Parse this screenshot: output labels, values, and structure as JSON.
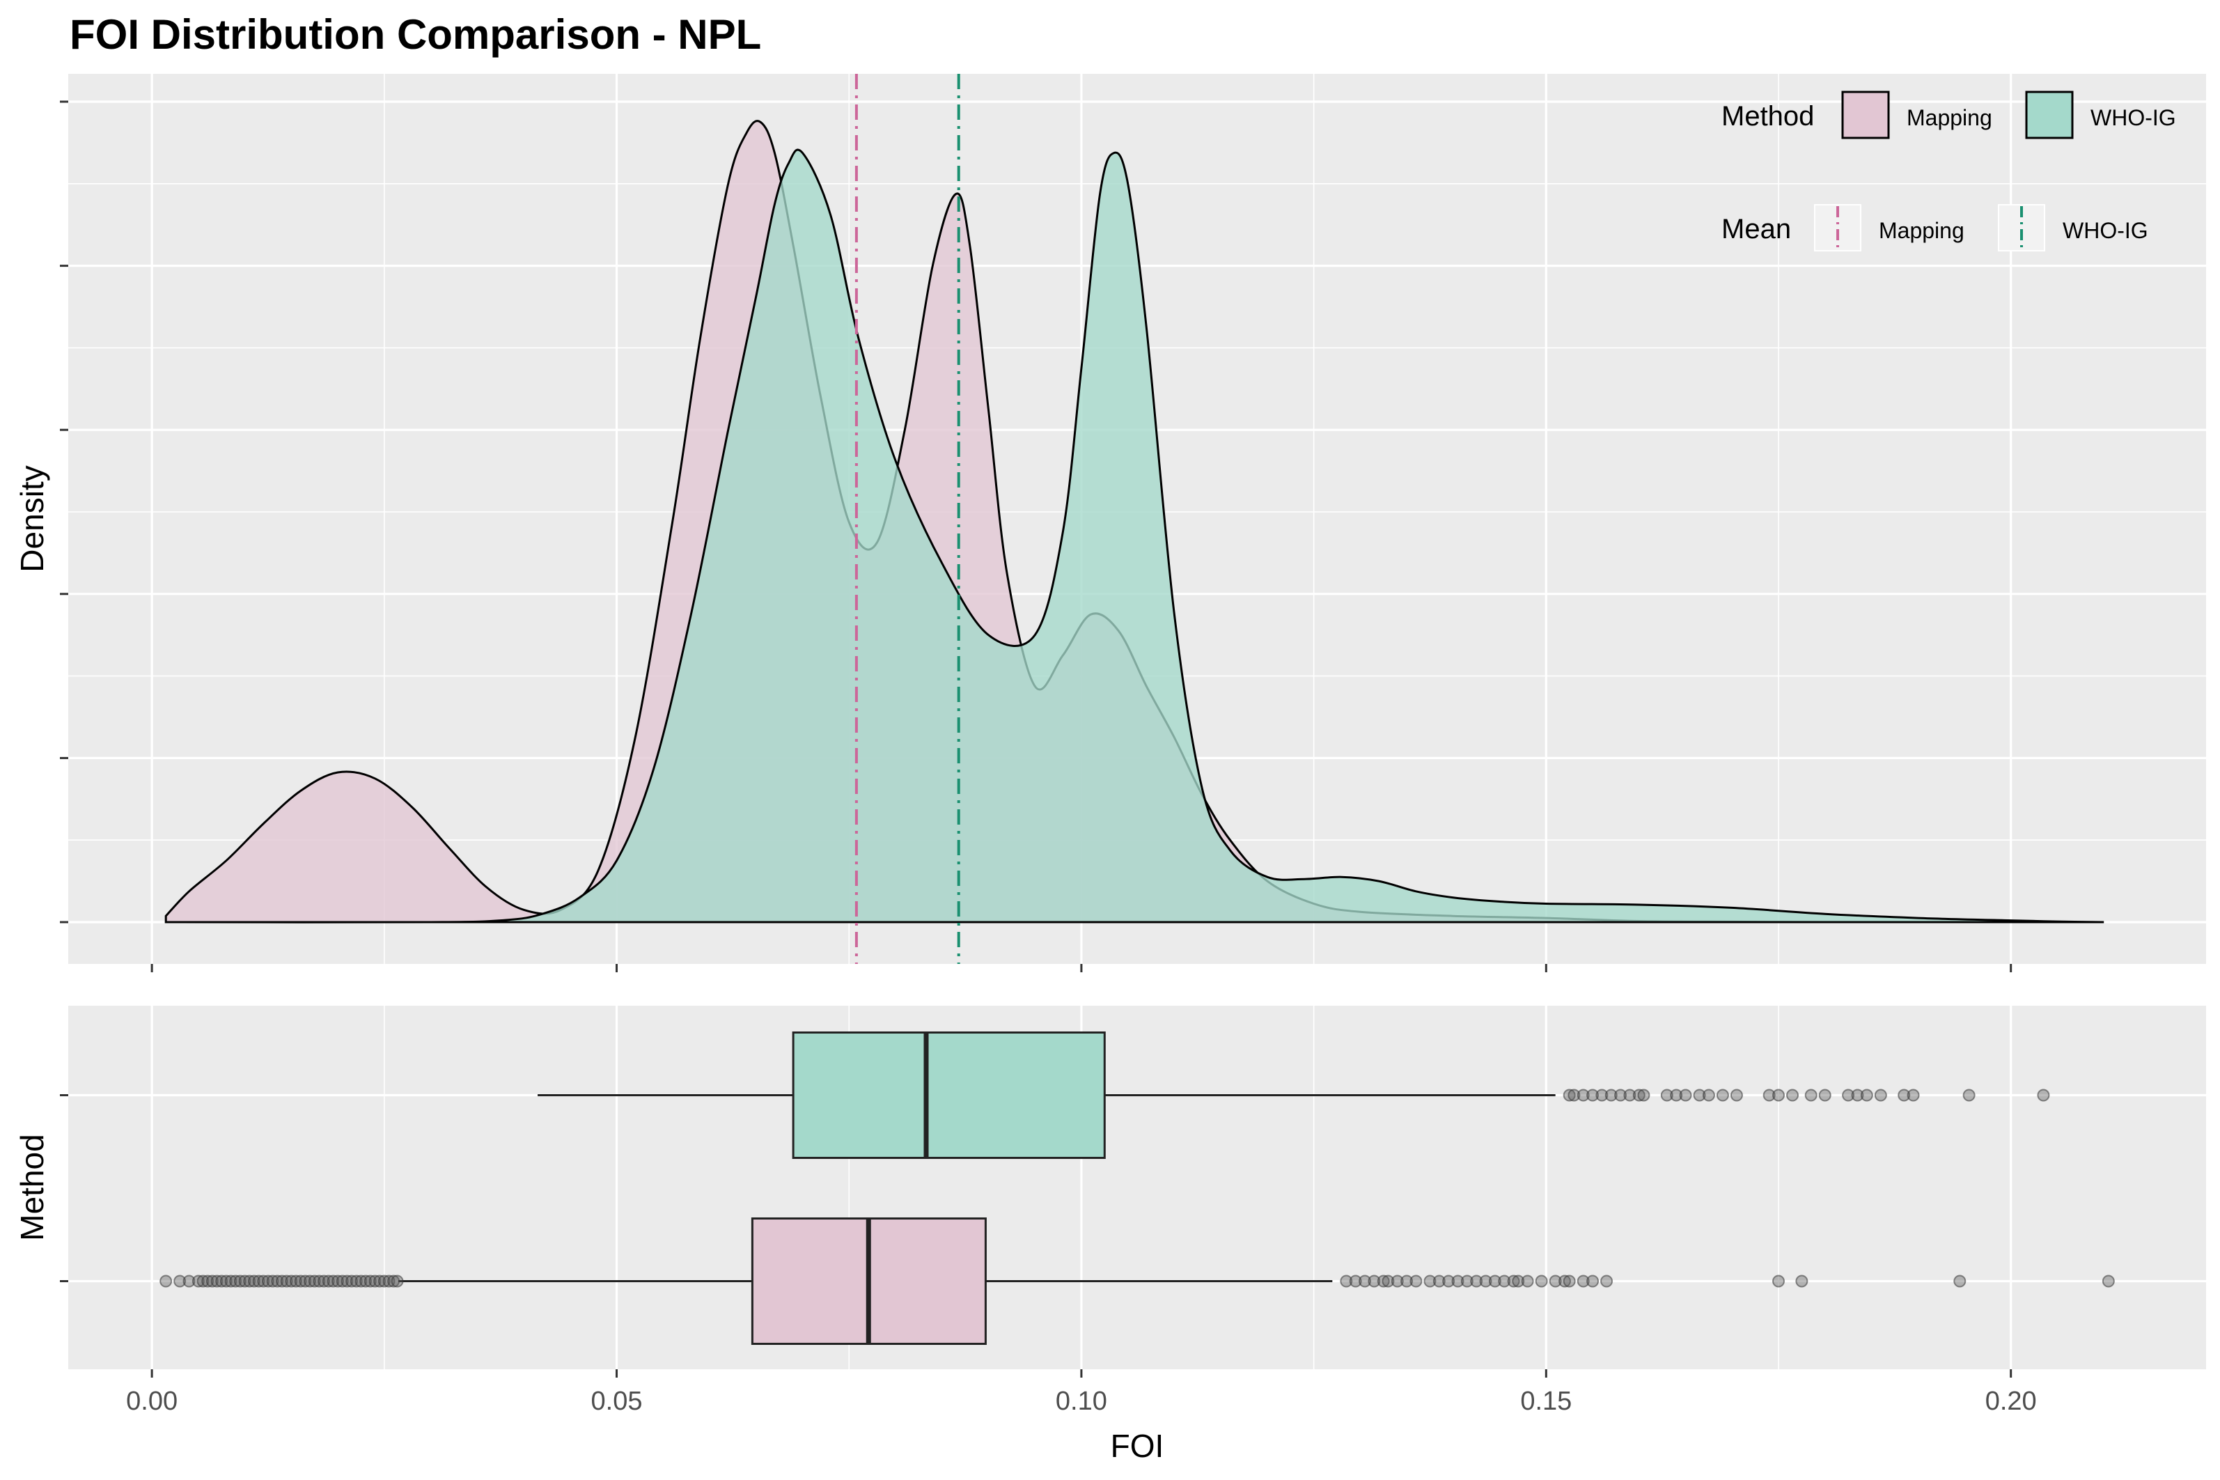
{
  "chart_data": {
    "title": "FOI Distribution Comparison - NPL",
    "xlabel": "FOI",
    "xlim": [
      -0.009,
      0.221
    ],
    "x_ticks": [
      0.0,
      0.05,
      0.1,
      0.15,
      0.2
    ],
    "x_tick_labels": [
      "0.00",
      "0.05",
      "0.10",
      "0.15",
      "0.20"
    ],
    "grid": true,
    "legend_position": "top-right",
    "panels": [
      {
        "type": "area",
        "subtype": "density",
        "ylabel": "Density",
        "y_ticks_labeled": false,
        "series": [
          {
            "name": "Mapping",
            "fill": "#e2c6d3",
            "x": [
              0.0015,
              0.004,
              0.008,
              0.012,
              0.016,
              0.02,
              0.024,
              0.028,
              0.032,
              0.036,
              0.04,
              0.044,
              0.048,
              0.052,
              0.056,
              0.059,
              0.062,
              0.064,
              0.0655,
              0.067,
              0.069,
              0.072,
              0.075,
              0.078,
              0.081,
              0.084,
              0.0865,
              0.088,
              0.09,
              0.092,
              0.095,
              0.098,
              0.101,
              0.104,
              0.107,
              0.11,
              0.113,
              0.116,
              0.12,
              0.125,
              0.13,
              0.14,
              0.15,
              0.16,
              0.17,
              0.18,
              0.19,
              0.2,
              0.205
            ],
            "y": [
              0.3,
              1.5,
              3.0,
              4.8,
              6.4,
              7.3,
              7.0,
              5.6,
              3.6,
              1.7,
              0.6,
              0.6,
              2.5,
              9.0,
              19.5,
              28.5,
              36.0,
              38.5,
              39.0,
              37.5,
              33.0,
              25.5,
              19.5,
              18.5,
              24.0,
              32.0,
              35.5,
              33.0,
              25.0,
              17.0,
              11.5,
              13.0,
              15.0,
              14.2,
              11.5,
              9.0,
              6.2,
              4.0,
              2.0,
              0.9,
              0.5,
              0.3,
              0.2,
              0.05,
              0.02,
              0.0,
              0.0,
              0.0,
              0.0
            ]
          },
          {
            "name": "WHO-IG",
            "fill": "#a4d9cb",
            "x": [
              0.0015,
              0.03,
              0.038,
              0.042,
              0.046,
              0.05,
              0.054,
              0.058,
              0.062,
              0.065,
              0.067,
              0.0685,
              0.07,
              0.073,
              0.076,
              0.08,
              0.085,
              0.09,
              0.095,
              0.098,
              0.1,
              0.102,
              0.1035,
              0.105,
              0.107,
              0.11,
              0.113,
              0.116,
              0.12,
              0.124,
              0.128,
              0.132,
              0.136,
              0.14,
              0.145,
              0.15,
              0.16,
              0.17,
              0.18,
              0.19,
              0.2,
              0.205,
              0.21
            ],
            "y": [
              0.0,
              0.0,
              0.1,
              0.4,
              1.2,
              3.0,
              7.5,
              15.0,
              24.0,
              30.5,
              35.0,
              37.0,
              37.5,
              34.5,
              28.5,
              22.5,
              17.5,
              14.0,
              14.0,
              19.0,
              27.0,
              35.5,
              37.5,
              36.0,
              29.0,
              15.0,
              6.5,
              3.5,
              2.2,
              2.1,
              2.2,
              2.0,
              1.5,
              1.2,
              1.0,
              0.9,
              0.85,
              0.7,
              0.4,
              0.2,
              0.08,
              0.03,
              0.0
            ]
          }
        ],
        "mean_lines": {
          "legend_title": "Mean",
          "items": [
            {
              "name": "Mapping",
              "x": 0.0758,
              "color": "#cc6699",
              "linetype": "dashdot"
            },
            {
              "name": "WHO-IG",
              "x": 0.0868,
              "color": "#1a9070",
              "linetype": "dashdot"
            }
          ]
        },
        "legend_title": "Method"
      },
      {
        "type": "boxplot",
        "orientation": "horizontal",
        "ylabel": "Method",
        "y_ticks_labeled": false,
        "boxes": [
          {
            "name": "WHO-IG",
            "fill": "#a4d9cb",
            "whisker_low": 0.0415,
            "q1": 0.069,
            "median": 0.0833,
            "q3": 0.1025,
            "whisker_high": 0.151,
            "outliers": [
              0.1525,
              0.153,
              0.154,
              0.155,
              0.156,
              0.157,
              0.158,
              0.159,
              0.16,
              0.1605,
              0.163,
              0.164,
              0.165,
              0.1665,
              0.1675,
              0.169,
              0.1705,
              0.174,
              0.175,
              0.1765,
              0.1785,
              0.18,
              0.1825,
              0.1835,
              0.1845,
              0.186,
              0.1885,
              0.1895,
              0.1955,
              0.2035
            ]
          },
          {
            "name": "Mapping",
            "fill": "#e2c6d3",
            "whisker_low": 0.0265,
            "q1": 0.0646,
            "median": 0.0771,
            "q3": 0.0897,
            "whisker_high": 0.127,
            "outliers": [
              0.0015,
              0.003,
              0.004,
              0.005,
              0.0055,
              0.006,
              0.0065,
              0.007,
              0.0075,
              0.008,
              0.0085,
              0.009,
              0.0095,
              0.01,
              0.0105,
              0.011,
              0.0115,
              0.012,
              0.0125,
              0.013,
              0.0135,
              0.014,
              0.0145,
              0.015,
              0.0155,
              0.016,
              0.0165,
              0.017,
              0.0175,
              0.018,
              0.0185,
              0.019,
              0.0195,
              0.02,
              0.0205,
              0.021,
              0.0215,
              0.022,
              0.0225,
              0.023,
              0.0235,
              0.024,
              0.0245,
              0.025,
              0.0255,
              0.026,
              0.0264,
              0.1285,
              0.1295,
              0.1305,
              0.1315,
              0.1325,
              0.133,
              0.134,
              0.135,
              0.136,
              0.1375,
              0.1385,
              0.1395,
              0.1405,
              0.1415,
              0.1425,
              0.1435,
              0.1445,
              0.1455,
              0.1465,
              0.147,
              0.148,
              0.1495,
              0.151,
              0.152,
              0.1525,
              0.154,
              0.155,
              0.1565,
              0.175,
              0.1775,
              0.1945,
              0.2105
            ]
          }
        ]
      }
    ]
  }
}
